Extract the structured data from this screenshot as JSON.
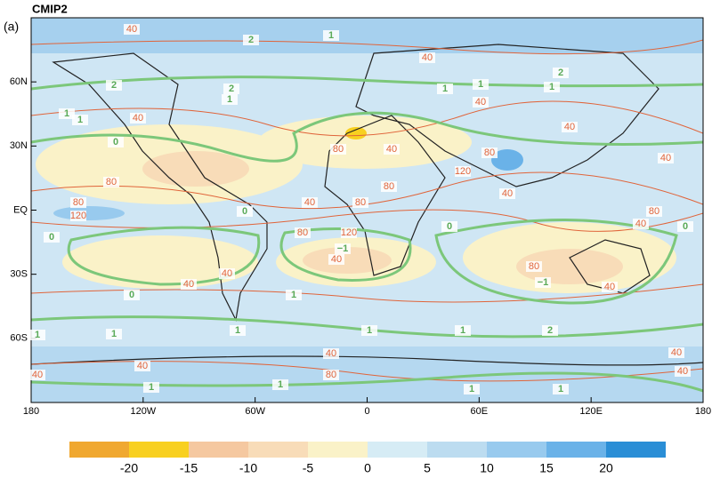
{
  "panel_label": "(a)",
  "title": "CMIP2",
  "map": {
    "lonlim": [
      -180,
      180
    ],
    "latlim": [
      -90,
      90
    ],
    "lon_ticks": [
      {
        "value": -180,
        "label": "180"
      },
      {
        "value": -120,
        "label": "120W"
      },
      {
        "value": -60,
        "label": "60W"
      },
      {
        "value": 0,
        "label": "0"
      },
      {
        "value": 60,
        "label": "60E"
      },
      {
        "value": 120,
        "label": "120E"
      },
      {
        "value": 180,
        "label": "180"
      }
    ],
    "lat_ticks": [
      {
        "value": 60,
        "label": "60N"
      },
      {
        "value": 30,
        "label": "30N"
      },
      {
        "value": 0,
        "label": "EQ"
      },
      {
        "value": -30,
        "label": "30S"
      },
      {
        "value": -60,
        "label": "60S"
      }
    ],
    "contour_labels": [
      "40",
      "40",
      "40",
      "1",
      "0",
      "40",
      "40",
      "80",
      "80",
      "40",
      "80",
      "80",
      "120",
      "40",
      "80",
      "80",
      "120",
      "40",
      "40",
      "80",
      "40",
      "80",
      "120",
      "40",
      "80",
      "40",
      "40",
      "40",
      "−1",
      "−1",
      "0",
      "0",
      "0",
      "0",
      "0",
      "1",
      "1",
      "1",
      "1",
      "1",
      "1",
      "2",
      "2",
      "2",
      "2",
      "2",
      "1",
      "1",
      "1",
      "1",
      "40",
      "40",
      "40",
      "80",
      "40",
      "40",
      "1",
      "1",
      "1",
      "1",
      "1",
      "1"
    ]
  },
  "colorbar": {
    "colors": [
      "#f0a830",
      "#f8d020",
      "#f5c8a0",
      "#f8dcb8",
      "#faf2c8",
      "#d6ecf5",
      "#bcdcf0",
      "#98caee",
      "#6ab2e8",
      "#2a8ed6"
    ],
    "ticks": [
      -20,
      -15,
      -10,
      -5,
      0,
      5,
      10,
      15,
      20
    ]
  }
}
